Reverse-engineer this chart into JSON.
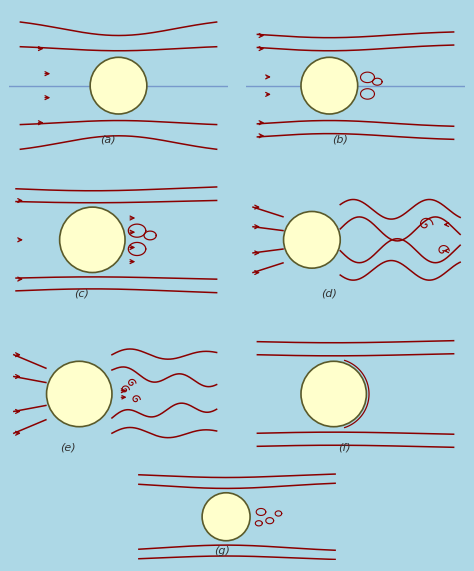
{
  "bg_color": "#add8e6",
  "cylinder_color": "#ffffcc",
  "cylinder_edge": "#5a5a2a",
  "stream_color": "#8b0000",
  "blue_line_color": "#7799cc",
  "label_color": "#333333",
  "label_fontsize": 8,
  "panels": [
    "(a)",
    "(b)",
    "(c)",
    "(d)",
    "(e)",
    "(f)",
    "(g)"
  ]
}
